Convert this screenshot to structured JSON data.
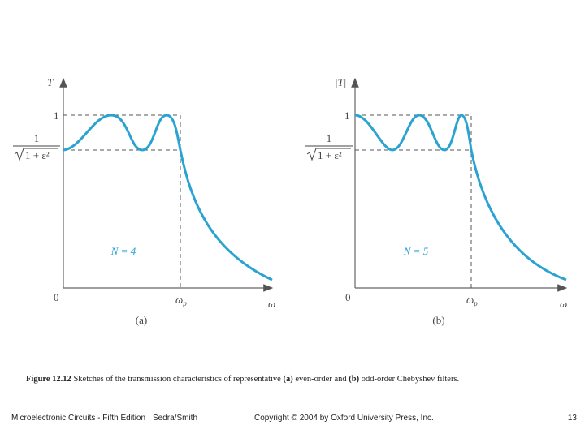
{
  "panels": [
    {
      "y_label": "T",
      "one_label": "1",
      "ripple_label": {
        "numerator": "1",
        "radicand": "1 + ε²"
      },
      "order_label": "N = 4",
      "origin_label": "0",
      "edge_label": {
        "symbol": "ω",
        "subscript": "p"
      },
      "x_label": "ω",
      "panel_label": "(a)"
    },
    {
      "y_label": "|T|",
      "one_label": "1",
      "ripple_label": {
        "numerator": "1",
        "radicand": "1 + ε²"
      },
      "order_label": "N = 5",
      "origin_label": "0",
      "edge_label": {
        "symbol": "ω",
        "subscript": "p"
      },
      "x_label": "ω",
      "panel_label": "(b)"
    }
  ],
  "caption": {
    "figure": "Figure 12.12",
    "text_1": "Sketches of the transmission characteristics of representative",
    "mark_a": "(a)",
    "text_2": "even-order and",
    "mark_b": "(b)",
    "text_3": "odd-order Chebyshev filters."
  },
  "footer": {
    "book": "Microelectronic Circuits - Fifth Edition",
    "authors": "Sedra/Smith",
    "copyright": "Copyright © 2004 by Oxford University Press, Inc.",
    "page": "13"
  }
}
